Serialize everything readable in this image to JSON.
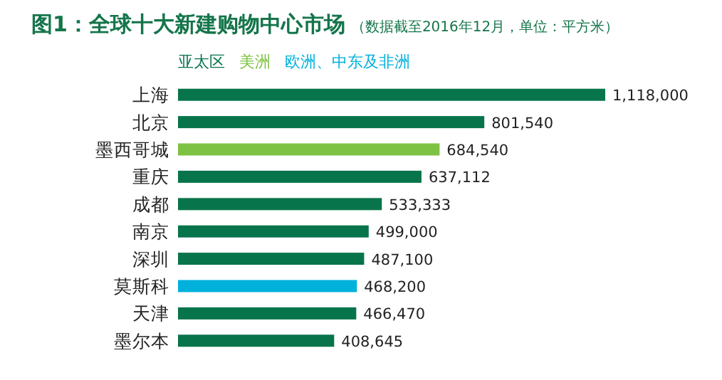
{
  "chart_data": {
    "type": "bar",
    "orientation": "horizontal",
    "title": "图1：全球十大新建购物中心市场",
    "subtitle": "（数据截至2016年12月，单位：平方米）",
    "categories": [
      "上海",
      "北京",
      "墨西哥城",
      "重庆",
      "成都",
      "南京",
      "深圳",
      "莫斯科",
      "天津",
      "墨尔本"
    ],
    "series": [
      {
        "name": "亚太区",
        "color": "#08744b",
        "values": [
          1118000,
          801540,
          null,
          637112,
          533333,
          499000,
          487100,
          null,
          466470,
          408645
        ],
        "value_labels": [
          "1,118,000",
          "801,540",
          null,
          "637,112",
          "533,333",
          "499,000",
          "487,100",
          null,
          "466,470",
          "408,645"
        ]
      },
      {
        "name": "美洲",
        "color": "#7dc242",
        "values": [
          null,
          null,
          684540,
          null,
          null,
          null,
          null,
          null,
          null,
          null
        ],
        "value_labels": [
          null,
          null,
          "684,540",
          null,
          null,
          null,
          null,
          null,
          null,
          null
        ]
      },
      {
        "name": "欧洲、中东及非洲",
        "color": "#00b1dc",
        "values": [
          null,
          null,
          null,
          null,
          null,
          null,
          null,
          468200,
          null,
          null
        ],
        "value_labels": [
          null,
          null,
          null,
          null,
          null,
          null,
          null,
          "468,200",
          null,
          null
        ]
      }
    ],
    "legend": "top"
  }
}
